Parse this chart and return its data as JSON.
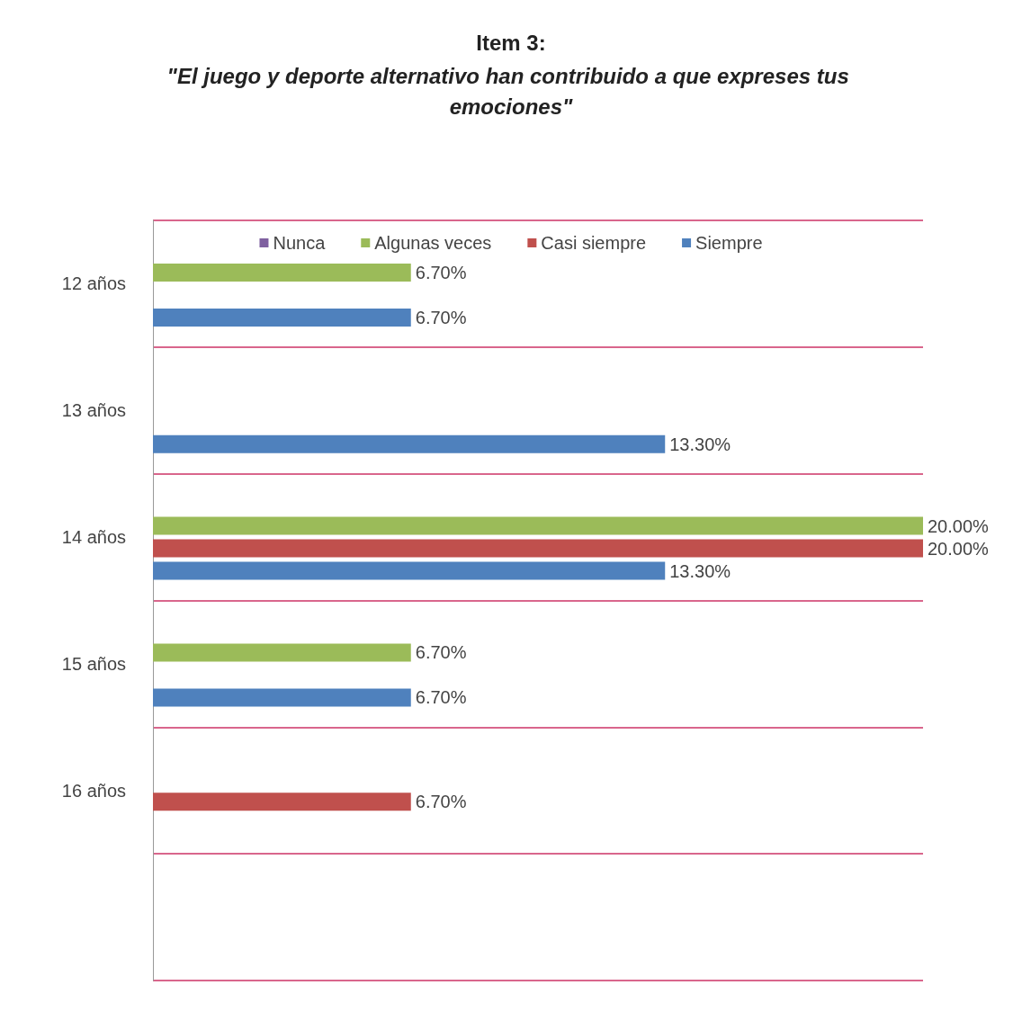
{
  "chart_data": {
    "type": "bar",
    "orientation": "horizontal",
    "title": "Item 3:",
    "subtitle": "\"El juego y deporte alternativo han contribuido a que expreses tus emociones\"",
    "categories": [
      "12 años",
      "13 años",
      "14 años",
      "15 años",
      "16 años",
      null
    ],
    "series": [
      {
        "name": "Nunca",
        "color": "#7f60a0",
        "values": [
          null,
          null,
          null,
          null,
          null,
          null
        ],
        "value_labels": [
          null,
          null,
          null,
          null,
          null,
          null
        ]
      },
      {
        "name": "Algunas veces",
        "color": "#9bbb59",
        "values": [
          6.7,
          null,
          20,
          6.7,
          null,
          null
        ],
        "value_labels": [
          "6.70%",
          null,
          "20.00%",
          "6.70%",
          null,
          null
        ]
      },
      {
        "name": "Casi siempre",
        "color": "#c0504d",
        "values": [
          null,
          null,
          20,
          null,
          6.7,
          null
        ],
        "value_labels": [
          null,
          null,
          "20.00%",
          null,
          "6.70%",
          null
        ]
      },
      {
        "name": "Siempre",
        "color": "#4f81bd",
        "values": [
          6.7,
          13.3,
          13.3,
          6.7,
          null,
          null
        ],
        "value_labels": [
          "6.70%",
          "13.30%",
          "13.30%",
          "6.70%",
          null,
          null
        ]
      }
    ],
    "grid": true,
    "legend": "top"
  }
}
